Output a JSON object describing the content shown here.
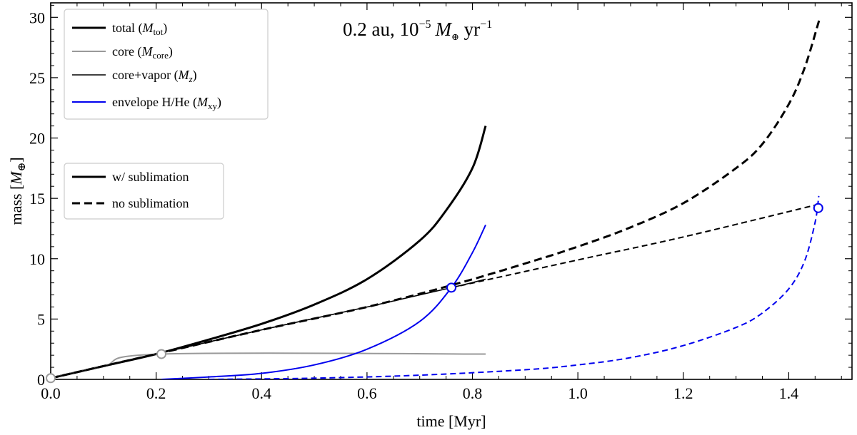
{
  "chart_data": {
    "type": "line",
    "title": {
      "prefix": "0.2 au, 10",
      "exponent": "−5",
      "symbol": "M",
      "symbol_sub": "⊕",
      "unit": " yr",
      "unit_exp": "−1"
    },
    "xlabel": "time [Myr]",
    "ylabel": {
      "prefix": "mass [",
      "symbol": "M",
      "sub": "⊕",
      "suffix": "]"
    },
    "xlim": [
      0.0,
      1.52
    ],
    "ylim": [
      0,
      31.2
    ],
    "xticks": [
      0.0,
      0.2,
      0.4,
      0.6,
      0.8,
      1.0,
      1.2,
      1.4
    ],
    "xtick_labels": [
      "0.0",
      "0.2",
      "0.4",
      "0.6",
      "0.8",
      "1.0",
      "1.2",
      "1.4"
    ],
    "yticks": [
      0,
      5,
      10,
      15,
      20,
      25,
      30
    ],
    "ytick_labels": [
      "0",
      "5",
      "10",
      "15",
      "20",
      "25",
      "30"
    ],
    "legend_top": [
      {
        "label": "total (",
        "math": "M",
        "sub": "tot",
        "close": ")",
        "color": "#000000",
        "width": 3
      },
      {
        "label": "core (",
        "math": "M",
        "sub": "core",
        "close": ")",
        "color": "#999999",
        "width": 2
      },
      {
        "label": "core+vapor (",
        "math": "M",
        "sub": "z",
        "close": ")",
        "color": "#000000",
        "width": 1.6
      },
      {
        "label": "envelope H/He (",
        "math": "M",
        "sub": "xy",
        "close": ")",
        "color": "#0000ee",
        "width": 2
      }
    ],
    "legend_style": [
      {
        "label": "w/ sublimation",
        "style": "solid"
      },
      {
        "label": "no sublimation",
        "style": "dashed"
      }
    ],
    "series": [
      {
        "name": "total, w/ sublimation",
        "color": "#000000",
        "width": 3,
        "dash": "",
        "x": [
          0.0,
          0.1,
          0.2,
          0.3,
          0.4,
          0.5,
          0.6,
          0.7,
          0.75,
          0.8,
          0.825
        ],
        "y": [
          0.1,
          1.1,
          2.1,
          3.3,
          4.6,
          6.2,
          8.3,
          11.5,
          14.0,
          17.5,
          21.0
        ]
      },
      {
        "name": "core, w/ sublimation",
        "color": "#999999",
        "width": 2,
        "dash": "",
        "x": [
          0.0,
          0.1,
          0.21,
          0.825
        ],
        "y": [
          0.1,
          1.1,
          2.1,
          2.1
        ]
      },
      {
        "name": "core+vapor, w/ sublimation",
        "color": "#000000",
        "width": 1.6,
        "dash": "",
        "x": [
          0.0,
          0.2,
          0.4,
          0.6,
          0.76,
          0.825
        ],
        "y": [
          0.1,
          2.1,
          4.1,
          6.0,
          7.6,
          8.3
        ]
      },
      {
        "name": "envelope H/He, w/ sublimation",
        "color": "#0000ee",
        "width": 2,
        "dash": "",
        "x": [
          0.21,
          0.3,
          0.4,
          0.5,
          0.6,
          0.7,
          0.76,
          0.8,
          0.825
        ],
        "y": [
          0.0,
          0.2,
          0.5,
          1.2,
          2.5,
          4.8,
          7.6,
          10.5,
          12.8
        ]
      },
      {
        "name": "total, no sublimation",
        "color": "#000000",
        "width": 3,
        "dash": "11,6",
        "x": [
          0.0,
          0.2,
          0.4,
          0.6,
          0.76,
          0.9,
          1.0,
          1.1,
          1.2,
          1.3,
          1.35,
          1.4,
          1.43,
          1.458
        ],
        "y": [
          0.1,
          2.1,
          4.1,
          6.0,
          7.8,
          9.6,
          11.0,
          12.6,
          14.6,
          17.5,
          19.5,
          22.8,
          25.8,
          29.8
        ]
      },
      {
        "name": "core+vapor, no sublimation",
        "color": "#000000",
        "width": 2,
        "dash": "8,5",
        "x": [
          0.76,
          1.0,
          1.2,
          1.456
        ],
        "y": [
          7.6,
          9.9,
          11.8,
          14.5
        ]
      },
      {
        "name": "envelope H/He, no sublimation",
        "color": "#0000ee",
        "width": 2,
        "dash": "8,5",
        "x": [
          0.3,
          0.5,
          0.7,
          0.9,
          1.0,
          1.1,
          1.2,
          1.3,
          1.35,
          1.4,
          1.43,
          1.45,
          1.457
        ],
        "y": [
          0.0,
          0.1,
          0.35,
          0.8,
          1.2,
          1.8,
          2.8,
          4.3,
          5.5,
          7.5,
          9.8,
          13.0,
          15.2
        ]
      }
    ],
    "markers": [
      {
        "name": "core-marker",
        "x": 0.21,
        "y": 2.1,
        "color": "#999999"
      },
      {
        "name": "crossover-marker-sublimation",
        "x": 0.76,
        "y": 7.6,
        "color": "#0000ee"
      },
      {
        "name": "crossover-marker-no-sublimation",
        "x": 1.456,
        "y": 14.2,
        "color": "#0000ee"
      },
      {
        "name": "origin-marker",
        "x": 0.0,
        "y": 0.1,
        "color": "#999999"
      }
    ]
  }
}
